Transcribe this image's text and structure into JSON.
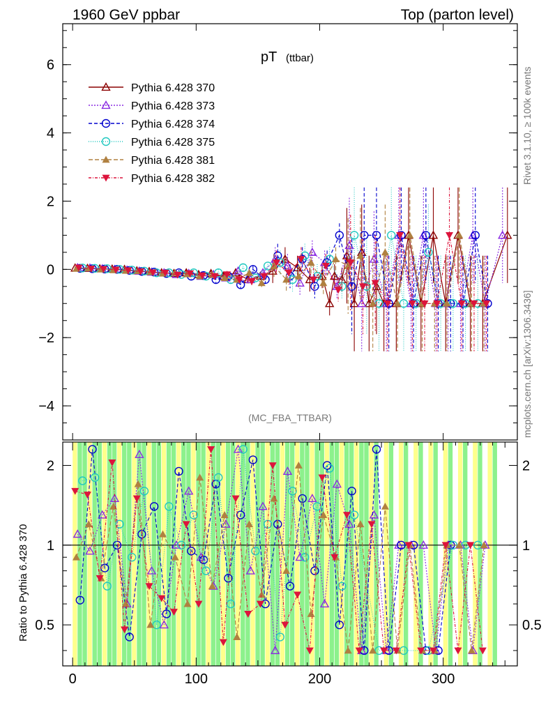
{
  "header": {
    "left": "1960 GeV ppbar",
    "right": "Top (parton level)"
  },
  "side_labels": {
    "rivet": "Rivet 3.1.10, ≥ 100k events",
    "mcplots": "mcplots.cern.ch [arXiv:1306.3436]"
  },
  "colors": {
    "s370": "#8b0000",
    "s373": "#8a2be2",
    "s374": "#0000cd",
    "s375": "#20c8c0",
    "s381": "#b08040",
    "s382": "#dc143c",
    "band_yellow": "#ffff80",
    "band_green": "#80f080"
  },
  "chart_data": [
    {
      "type": "line",
      "title": "pT",
      "title_sub": "(ttbar)",
      "watermark": "(MC_FBA_TTBAR)",
      "xlim": [
        -8,
        360
      ],
      "ylim": [
        -5,
        7.2
      ],
      "y_ticks": [
        -4,
        -2,
        0,
        2,
        4,
        6
      ],
      "y_tick_labels": [
        "−4",
        "−2",
        "0",
        "2",
        "4",
        "6"
      ],
      "legend_position": "top-left",
      "series": [
        {
          "name": "Pythia 6.428 370",
          "marker": "triangle-open",
          "dash": "",
          "color": "#8b0000",
          "x": [
            2,
            12,
            22,
            32,
            42,
            52,
            62,
            72,
            82,
            92,
            102,
            112,
            122,
            132,
            142,
            152,
            162,
            172,
            182,
            192,
            202,
            208,
            212,
            218,
            222,
            228,
            234,
            240,
            246,
            252,
            262,
            272,
            282,
            292,
            302,
            312,
            322,
            332,
            352
          ],
          "y": [
            0.04,
            0.03,
            0.02,
            0.01,
            0,
            -0.04,
            -0.06,
            -0.1,
            -0.12,
            -0.1,
            -0.15,
            -0.12,
            -0.2,
            -0.1,
            -0.3,
            -0.2,
            -0.05,
            0.3,
            0.05,
            -0.3,
            -0.2,
            -1.0,
            -0.2,
            -0.3,
            0.4,
            -1.0,
            0.5,
            -1.0,
            -0.5,
            -1.0,
            -1.0,
            1.0,
            -1.0,
            1.0,
            -1.0,
            1.0,
            -1.0,
            -1.0,
            1.0
          ]
        },
        {
          "name": "Pythia 6.428 373",
          "marker": "triangle-open",
          "dash": "2,2",
          "color": "#8a2be2",
          "x": [
            4,
            14,
            24,
            34,
            44,
            54,
            64,
            74,
            84,
            94,
            104,
            114,
            124,
            134,
            144,
            154,
            164,
            174,
            184,
            194,
            204,
            214,
            224,
            234,
            244,
            254,
            264,
            274,
            284,
            294,
            304,
            314,
            324,
            334,
            348
          ],
          "y": [
            0.05,
            0.04,
            0.02,
            0,
            -0.02,
            -0.05,
            -0.08,
            -0.1,
            -0.15,
            -0.12,
            -0.2,
            -0.15,
            -0.25,
            -0.05,
            -0.3,
            -0.1,
            0.3,
            0.1,
            -0.4,
            0.5,
            0.2,
            -0.5,
            0.7,
            -1.0,
            0.3,
            -1.0,
            1.0,
            -1.0,
            1.0,
            -1.0,
            -1.0,
            -1.0,
            1.0,
            -1.0,
            1.0
          ]
        },
        {
          "name": "Pythia 6.428 374",
          "marker": "circle-open",
          "dash": "5,3",
          "color": "#0000cd",
          "x": [
            6,
            16,
            26,
            36,
            46,
            56,
            66,
            76,
            86,
            96,
            106,
            116,
            126,
            136,
            146,
            156,
            166,
            176,
            186,
            196,
            206,
            216,
            226,
            236,
            246,
            256,
            266,
            276,
            286,
            296,
            306,
            316,
            326,
            336
          ],
          "y": [
            0.03,
            0.02,
            0.01,
            0,
            -0.03,
            -0.06,
            -0.08,
            -0.12,
            -0.1,
            -0.2,
            -0.18,
            -0.3,
            -0.2,
            -0.45,
            0,
            -0.3,
            0.4,
            -0.2,
            0.3,
            -0.5,
            0.2,
            1.0,
            -0.5,
            1.0,
            1.0,
            -1.0,
            1.0,
            -1.0,
            1.0,
            -1.0,
            -1.0,
            -1.0,
            1.0,
            -1.0
          ]
        },
        {
          "name": "Pythia 6.428 375",
          "marker": "circle-open",
          "dash": "1,2",
          "color": "#20c8c0",
          "x": [
            8,
            18,
            28,
            38,
            48,
            58,
            68,
            78,
            88,
            98,
            108,
            118,
            128,
            138,
            148,
            158,
            168,
            178,
            188,
            198,
            208,
            218,
            228,
            238,
            248,
            258,
            268,
            278,
            288,
            298,
            308,
            318,
            328
          ],
          "y": [
            0.04,
            0.03,
            0.02,
            0.0,
            -0.02,
            -0.05,
            -0.1,
            -0.1,
            -0.15,
            -0.1,
            -0.2,
            -0.1,
            -0.3,
            0.05,
            -0.25,
            0.1,
            0.2,
            -0.3,
            0.4,
            -0.2,
            0.3,
            -0.5,
            1.0,
            -0.5,
            -1.0,
            1.0,
            -1.0,
            -1.0,
            0.5,
            -1.0,
            -1.0,
            -1.0,
            -1.0
          ]
        },
        {
          "name": "Pythia 6.428 381",
          "marker": "triangle-filled",
          "dash": "6,3",
          "color": "#b08040",
          "x": [
            3,
            13,
            23,
            33,
            43,
            53,
            63,
            73,
            83,
            93,
            103,
            113,
            123,
            133,
            143,
            153,
            163,
            173,
            183,
            193,
            203,
            213,
            223,
            233,
            243,
            253,
            263,
            273,
            283,
            293,
            303,
            313,
            323,
            333
          ],
          "y": [
            0.02,
            0.03,
            0.0,
            -0.02,
            -0.04,
            -0.05,
            -0.08,
            -0.12,
            -0.1,
            -0.14,
            -0.2,
            -0.16,
            -0.25,
            -0.3,
            -0.1,
            -0.4,
            0.1,
            -0.3,
            -0.2,
            0.2,
            -0.4,
            0.3,
            0.1,
            0.4,
            -1.0,
            0.5,
            -1.0,
            1.0,
            -1.0,
            -1.0,
            -1.0,
            1.0,
            -1.0,
            -1.0
          ]
        },
        {
          "name": "Pythia 6.428 382",
          "marker": "triangle-down-filled",
          "dash": "4,2,1,2",
          "color": "#dc143c",
          "x": [
            5,
            15,
            25,
            35,
            45,
            55,
            65,
            75,
            85,
            95,
            105,
            115,
            125,
            135,
            145,
            155,
            165,
            175,
            185,
            195,
            205,
            215,
            225,
            235,
            245,
            255,
            265,
            275,
            285,
            295,
            305,
            315,
            325,
            335
          ],
          "y": [
            0.05,
            0.02,
            0.01,
            -0.01,
            -0.03,
            -0.06,
            -0.09,
            -0.1,
            -0.16,
            -0.12,
            -0.18,
            -0.2,
            -0.15,
            -0.3,
            -0.35,
            -0.2,
            0.2,
            -0.1,
            0.3,
            -0.3,
            0.1,
            -0.6,
            0.2,
            -0.5,
            -0.4,
            -1.0,
            1.0,
            -1.0,
            -1.0,
            -1.0,
            1.0,
            -1.0,
            -1.0,
            -1.0
          ]
        }
      ]
    },
    {
      "type": "line",
      "ylabel": "Ratio to Pythia 6.428 370",
      "xlim": [
        -8,
        360
      ],
      "ylim": [
        0.35,
        2.45
      ],
      "y_scale": "log",
      "y_ticks": [
        0.5,
        1,
        2
      ],
      "y_tick_labels": [
        "0.5",
        "1",
        "2"
      ],
      "x_ticks": [
        0,
        100,
        200,
        300
      ],
      "x_tick_labels": [
        "0",
        "100",
        "200",
        "300"
      ],
      "reference": 1,
      "uncertainty_bands": true,
      "series": [
        {
          "name": "Pythia 6.428 373",
          "x": [
            4,
            14,
            24,
            34,
            44,
            54,
            64,
            74,
            84,
            94,
            104,
            114,
            124,
            134,
            144,
            154,
            164,
            174,
            184,
            194,
            204,
            214,
            224,
            234,
            244,
            254,
            264,
            274,
            284,
            294,
            304,
            314,
            324,
            334
          ],
          "y": [
            1.1,
            0.95,
            1.3,
            1.5,
            0.6,
            2.2,
            0.8,
            0.5,
            1.0,
            1.6,
            0.9,
            0.7,
            1.2,
            2.3,
            0.8,
            1.4,
            0.4,
            1.9,
            0.9,
            1.5,
            0.6,
            1.7,
            1.2,
            0.4,
            1.3,
            0.4,
            1.0,
            1.0,
            1.0,
            0.4,
            1.0,
            1.0,
            0.4,
            1.0
          ]
        },
        {
          "name": "Pythia 6.428 374",
          "x": [
            6,
            16,
            26,
            36,
            46,
            56,
            66,
            76,
            86,
            96,
            106,
            116,
            126,
            136,
            146,
            156,
            166,
            176,
            186,
            196,
            206,
            216,
            226,
            236,
            246,
            256,
            266,
            276,
            286,
            296,
            306
          ],
          "y": [
            0.62,
            2.3,
            0.82,
            1.0,
            0.45,
            1.1,
            1.4,
            0.55,
            1.9,
            0.95,
            0.88,
            1.7,
            0.75,
            1.3,
            2.1,
            0.6,
            1.2,
            0.7,
            1.5,
            0.8,
            2.0,
            0.5,
            1.6,
            0.4,
            2.3,
            0.4,
            1.0,
            1.0,
            0.4,
            0.4,
            1.0
          ]
        },
        {
          "name": "Pythia 6.428 375",
          "x": [
            8,
            18,
            28,
            38,
            48,
            58,
            68,
            78,
            88,
            98,
            108,
            118,
            128,
            138,
            148,
            158,
            168,
            178,
            188,
            198,
            208,
            218,
            228,
            248,
            268,
            288,
            308,
            318,
            328
          ],
          "y": [
            1.75,
            1.8,
            0.7,
            1.2,
            0.9,
            1.6,
            0.5,
            1.4,
            1.0,
            1.3,
            0.8,
            1.8,
            0.6,
            2.3,
            0.95,
            1.2,
            0.45,
            1.6,
            0.9,
            1.4,
            1.95,
            0.7,
            1.3,
            0.4,
            0.4,
            0.4,
            1.0,
            1.0,
            1.0
          ]
        },
        {
          "name": "Pythia 6.428 381",
          "x": [
            3,
            13,
            23,
            33,
            43,
            53,
            63,
            73,
            83,
            93,
            103,
            113,
            123,
            133,
            143,
            153,
            163,
            173,
            183,
            193,
            203,
            213,
            223,
            233,
            243,
            253,
            263,
            273,
            283,
            293,
            303,
            313,
            323,
            333
          ],
          "y": [
            0.9,
            1.2,
            0.75,
            1.4,
            0.6,
            1.7,
            0.5,
            1.1,
            0.9,
            0.6,
            1.8,
            0.7,
            1.3,
            0.45,
            1.2,
            0.65,
            1.5,
            0.8,
            2.0,
            0.55,
            1.3,
            0.9,
            0.4,
            1.2,
            0.4,
            1.4,
            0.4,
            1.0,
            0.4,
            0.4,
            1.0,
            1.0,
            0.4,
            1.0
          ]
        },
        {
          "name": "Pythia 6.428 382",
          "x": [
            2,
            12,
            22,
            32,
            42,
            52,
            62,
            72,
            82,
            92,
            102,
            112,
            122,
            132,
            142,
            152,
            162,
            172,
            182,
            192,
            202,
            212,
            222,
            232,
            242,
            252,
            262,
            272,
            282,
            292,
            302,
            312,
            322,
            332
          ],
          "y": [
            1.6,
            1.55,
            0.75,
            2.05,
            0.48,
            1.5,
            0.7,
            0.63,
            0.56,
            1.2,
            0.6,
            2.3,
            0.43,
            1.5,
            0.55,
            0.6,
            2.0,
            0.5,
            0.65,
            0.4,
            1.8,
            0.9,
            1.3,
            0.4,
            1.2,
            0.4,
            0.4,
            1.0,
            0.4,
            0.4,
            1.0,
            0.4,
            1.0,
            0.4
          ]
        }
      ]
    }
  ]
}
